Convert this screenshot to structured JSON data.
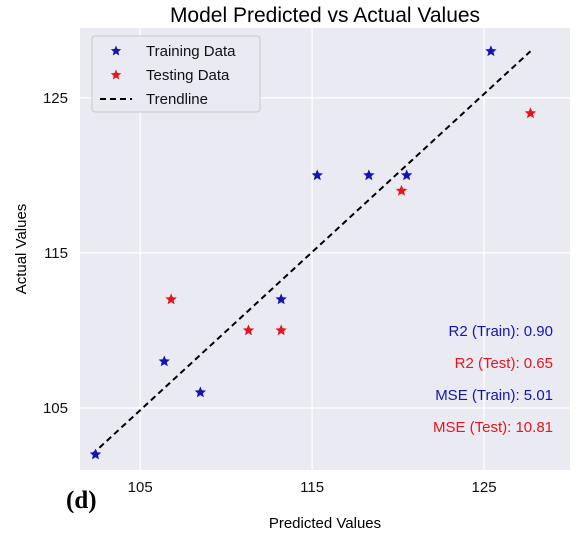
{
  "chart_data": {
    "type": "scatter",
    "title": "Model Predicted vs Actual Values",
    "xlabel": "Predicted Values",
    "ylabel": "Actual Values",
    "xlim": [
      101.5,
      130.0
    ],
    "ylim": [
      101.0,
      129.5
    ],
    "xticks": [
      105,
      115,
      125
    ],
    "yticks": [
      105,
      115,
      125
    ],
    "grid": true,
    "legend_position": "upper-left",
    "series": [
      {
        "name": "Training Data",
        "color": "#1414b4",
        "marker": "star",
        "x": [
          102.4,
          106.4,
          108.5,
          113.2,
          115.3,
          118.3,
          120.5,
          125.4
        ],
        "y": [
          102.0,
          108.0,
          106.0,
          112.0,
          120.0,
          120.0,
          120.0,
          128.0
        ]
      },
      {
        "name": "Testing Data",
        "color": "#e8141e",
        "marker": "star",
        "x": [
          106.8,
          111.3,
          113.2,
          120.2,
          127.7
        ],
        "y": [
          112.0,
          110.0,
          110.0,
          119.0,
          124.0
        ]
      }
    ],
    "trendline": {
      "name": "Trendline",
      "color": "#000000",
      "style": "dashed",
      "x": [
        102.2,
        127.7
      ],
      "y": [
        102.0,
        128.0
      ]
    },
    "annotations": [
      {
        "text": "R2 (Train): 0.90",
        "color": "#1414b4"
      },
      {
        "text": "R2 (Test): 0.65",
        "color": "#e8141e"
      },
      {
        "text": "MSE (Train): 5.01",
        "color": "#1414b4"
      },
      {
        "text": "MSE (Test): 10.81",
        "color": "#e8141e"
      }
    ],
    "panel_label": "(d)"
  }
}
